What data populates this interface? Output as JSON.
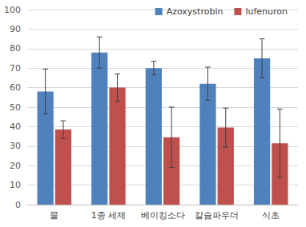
{
  "chart_data": {
    "type": "bar",
    "categories": [
      "물",
      "1종 세제",
      "베이킹소다",
      "칼슘파우더",
      "식초"
    ],
    "series": [
      {
        "name": "Azoxystrobin",
        "color": "#4f81bd",
        "values": [
          58,
          78,
          70,
          62,
          75
        ],
        "errors": [
          11.5,
          8,
          3.5,
          8.5,
          10
        ]
      },
      {
        "name": "lufenuron",
        "color": "#c0504d",
        "values": [
          38.5,
          60,
          34.5,
          39.5,
          31.5
        ],
        "errors": [
          4.5,
          7,
          15.5,
          10,
          17.5
        ]
      }
    ],
    "ylim": [
      0,
      100
    ],
    "yticks": [
      0,
      10,
      20,
      30,
      40,
      50,
      60,
      70,
      80,
      90,
      100
    ],
    "grid": true,
    "legend": "top-right"
  }
}
